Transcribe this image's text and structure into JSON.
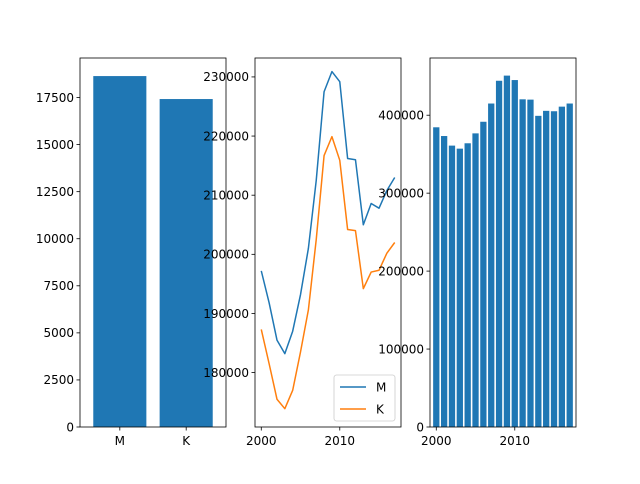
{
  "chart_data": [
    {
      "type": "bar",
      "categories": [
        "M",
        "K"
      ],
      "values": [
        18640,
        17420
      ],
      "ylim": [
        0,
        19600
      ],
      "yticks": [
        0,
        2500,
        5000,
        7500,
        10000,
        12500,
        15000,
        17500
      ],
      "color": "#1f77b4"
    },
    {
      "type": "line",
      "x": [
        2000,
        2001,
        2002,
        2003,
        2004,
        2005,
        2006,
        2007,
        2008,
        2009,
        2010,
        2011,
        2012,
        2013,
        2014,
        2015,
        2016,
        2017
      ],
      "series": [
        {
          "name": "M",
          "color": "#1f77b4",
          "values": [
            197200,
            191800,
            185500,
            183200,
            187000,
            193200,
            201000,
            212500,
            227500,
            230900,
            229200,
            216200,
            216000,
            205000,
            208600,
            207800,
            210800,
            213000
          ]
        },
        {
          "name": "K",
          "color": "#ff7f0e",
          "values": [
            187300,
            181500,
            175500,
            173900,
            177000,
            183500,
            190600,
            202500,
            216700,
            219900,
            215900,
            204200,
            204000,
            194200,
            197000,
            197300,
            200200,
            202000
          ]
        }
      ],
      "xlim": [
        1999.2,
        2017.8
      ],
      "ylim": [
        170800,
        233200
      ],
      "xticks": [
        2000,
        2010
      ],
      "yticks": [
        180000,
        190000,
        200000,
        210000,
        220000,
        230000
      ],
      "legend": "bottom-right"
    },
    {
      "type": "bar",
      "x": [
        2000,
        2001,
        2002,
        2003,
        2004,
        2005,
        2006,
        2007,
        2008,
        2009,
        2010,
        2011,
        2012,
        2013,
        2014,
        2015,
        2016,
        2017
      ],
      "values": [
        384500,
        373300,
        361000,
        357100,
        364000,
        376700,
        391600,
        415000,
        444200,
        450800,
        445100,
        420400,
        420000,
        399200,
        405600,
        405100,
        411000,
        415000
      ],
      "xlim": [
        1999.2,
        2017.8
      ],
      "ylim": [
        0,
        473400
      ],
      "xticks": [
        2000,
        2010
      ],
      "yticks": [
        0,
        100000,
        200000,
        300000,
        400000
      ],
      "color": "#1f77b4"
    }
  ]
}
